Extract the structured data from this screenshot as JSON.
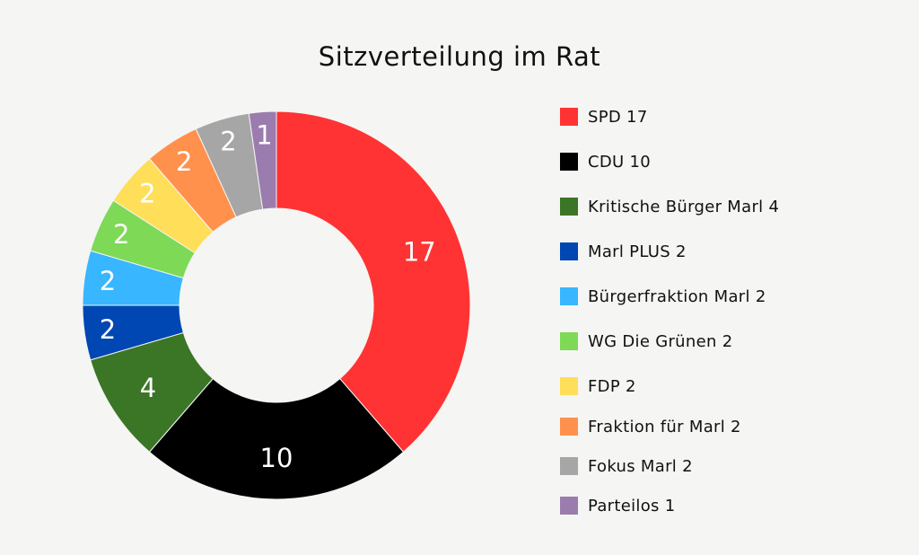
{
  "chart_data": {
    "type": "pie",
    "title": "Sitzverteilung im Rat",
    "categories": [
      "SPD",
      "CDU",
      "Kritische Bürger Marl",
      "Marl PLUS",
      "Bürgerfraktion Marl",
      "WG Die Grünen",
      "FDP",
      "Fraktion für Marl",
      "Fokus Marl",
      "Parteilos"
    ],
    "values": [
      17,
      10,
      4,
      2,
      2,
      2,
      2,
      2,
      2,
      1
    ],
    "legend_labels": [
      "SPD 17",
      "CDU 10",
      "Kritische Bürger Marl 4",
      "Marl PLUS 2",
      "Bürgerfraktion Marl 2",
      "WG Die Grünen 2",
      "FDP 2",
      "Fraktion für Marl 2",
      "Fokus Marl 2",
      "Parteilos 1"
    ],
    "colors": [
      "#ff3333",
      "#000000",
      "#3b7526",
      "#0047b3",
      "#38b6ff",
      "#7ed957",
      "#ffde59",
      "#ff914d",
      "#a6a6a6",
      "#9b7cae"
    ],
    "label_colors": [
      "#ffffff",
      "#ffffff",
      "#ffffff",
      "#ffffff",
      "#ffffff",
      "#ffffff",
      "#ffffff",
      "#ffffff",
      "#ffffff",
      "#ffffff"
    ],
    "legend_position": "right",
    "donut": true
  }
}
